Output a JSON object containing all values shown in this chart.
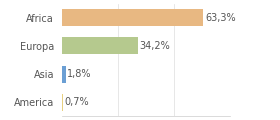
{
  "categories": [
    "Africa",
    "Europa",
    "Asia",
    "America"
  ],
  "values": [
    63.3,
    34.2,
    1.8,
    0.7
  ],
  "labels": [
    "63,3%",
    "34,2%",
    "1,8%",
    "0,7%"
  ],
  "bar_colors": [
    "#e8b882",
    "#b5c98e",
    "#6b9fd4",
    "#e8d080"
  ],
  "background_color": "#ffffff",
  "xlim": [
    0,
    75
  ],
  "bar_height": 0.6,
  "label_fontsize": 7.0,
  "tick_fontsize": 7.0,
  "grid_lines": [
    25,
    50,
    75
  ],
  "figsize": [
    2.8,
    1.2
  ],
  "dpi": 100
}
